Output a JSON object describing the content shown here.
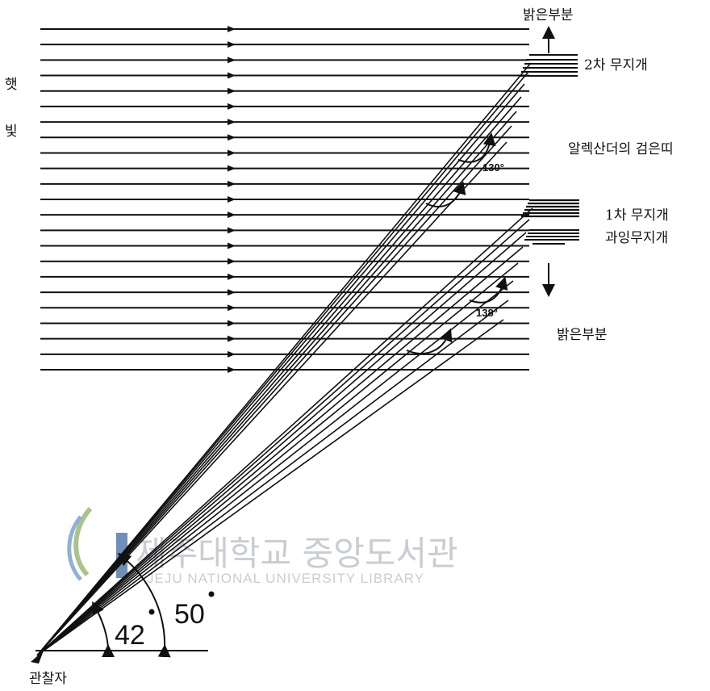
{
  "labels": {
    "top_bright": "밝은부분",
    "secondary_rainbow": "2차 무지개",
    "alexander_band": "알렉산더의 검은띠",
    "primary_rainbow": "1차 무지개",
    "supernumerary": "과잉무지개",
    "bottom_bright": "밝은부분",
    "sunlight_char1": "햇",
    "sunlight_char2": "빛",
    "observer": "관찰자"
  },
  "angles": {
    "deg_42": "42",
    "deg_50": "50",
    "deg_130": "130°",
    "deg_138": "138°"
  },
  "watermark": {
    "korean": "제주대학교 중앙도서관",
    "english": "JEJU NATIONAL UNIVERSITY LIBRARY"
  },
  "colors": {
    "ink": "#111111",
    "watermark": "#c9cdd3",
    "watermark_accent": "#6f8fb8"
  }
}
